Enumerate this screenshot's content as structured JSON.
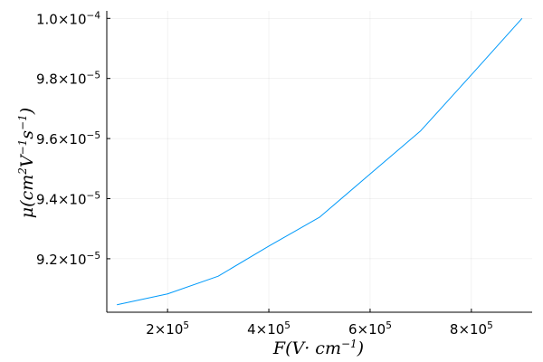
{
  "chart_data": {
    "type": "line",
    "title": "",
    "xlabel": "F(V· cm⁻¹)",
    "ylabel": "μ(cm²V⁻¹s⁻¹)",
    "xlabel_parts": {
      "main": "F(V· cm",
      "sup": "−1",
      "close": ")"
    },
    "ylabel_parts": {
      "mu": "μ(cm",
      "sup1": "2",
      "v": "V",
      "sup2": "−1",
      "s": "s",
      "sup3": "−1",
      "close": ")"
    },
    "xlim": [
      80000,
      920000
    ],
    "ylim": [
      9.022e-05,
      0.00010025
    ],
    "grid": true,
    "legend": "none",
    "line_color": "#009AFA",
    "x_ticks": [
      {
        "value": 200000,
        "mantissa": "2×10",
        "exponent": "5"
      },
      {
        "value": 400000,
        "mantissa": "4×10",
        "exponent": "5"
      },
      {
        "value": 600000,
        "mantissa": "6×10",
        "exponent": "5"
      },
      {
        "value": 800000,
        "mantissa": "8×10",
        "exponent": "5"
      }
    ],
    "y_ticks": [
      {
        "value": 9.2e-05,
        "mantissa": "9.2×10",
        "exponent": "−5"
      },
      {
        "value": 9.4e-05,
        "mantissa": "9.4×10",
        "exponent": "−5"
      },
      {
        "value": 9.6e-05,
        "mantissa": "9.6×10",
        "exponent": "−5"
      },
      {
        "value": 9.8e-05,
        "mantissa": "9.8×10",
        "exponent": "−5"
      },
      {
        "value": 0.0001,
        "mantissa": "1.0×10",
        "exponent": "−4"
      }
    ],
    "series": [
      {
        "x": [
          100000,
          200000,
          300000,
          400000,
          500000,
          600000,
          700000,
          800000,
          900000
        ],
        "y": [
          9.047e-05,
          9.083e-05,
          9.142e-05,
          9.242e-05,
          9.338e-05,
          9.482e-05,
          9.626e-05,
          9.812e-05,
          0.0001
        ]
      }
    ]
  }
}
